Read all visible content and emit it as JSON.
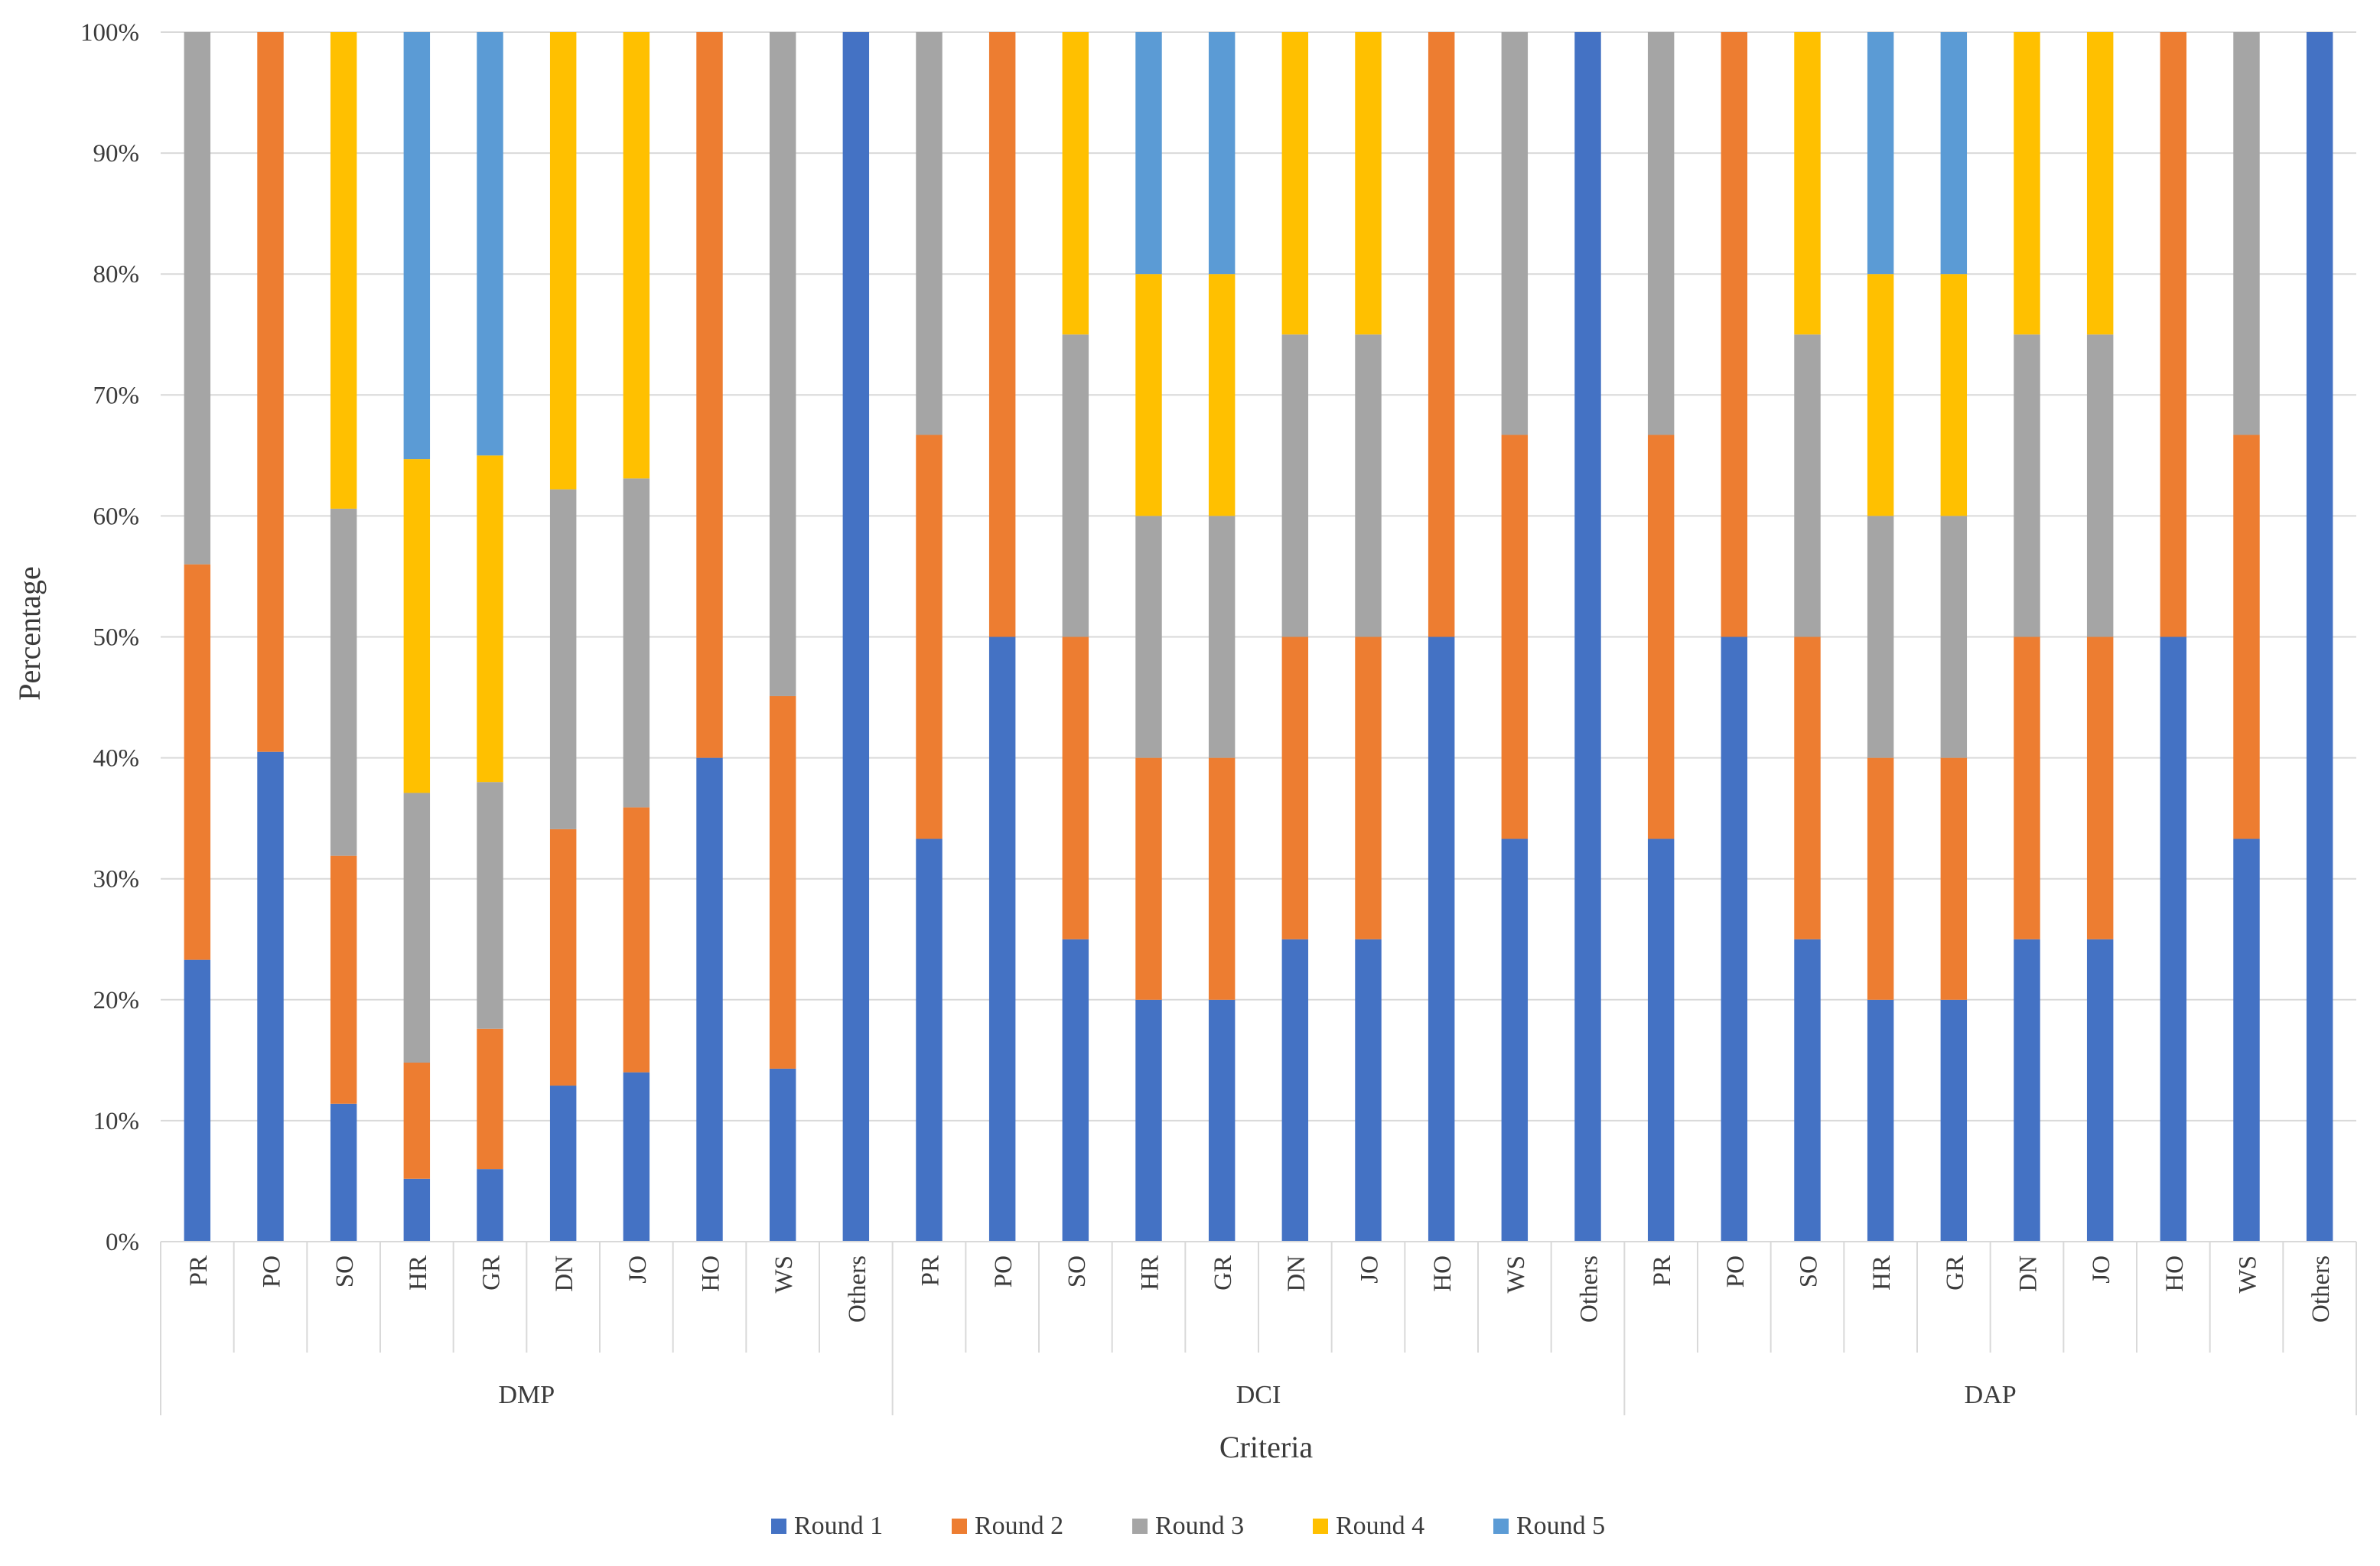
{
  "chart_data": {
    "type": "bar",
    "stacked": true,
    "percent": true,
    "xlabel": "Criteria",
    "ylabel": "Percentage",
    "ylim": [
      0,
      100
    ],
    "yticks": [
      "0%",
      "10%",
      "20%",
      "30%",
      "40%",
      "50%",
      "60%",
      "70%",
      "80%",
      "90%",
      "100%"
    ],
    "grid": true,
    "legend_position": "bottom",
    "groups": [
      {
        "name": "DMP",
        "categories": [
          "PR",
          "PO",
          "SO",
          "HR",
          "GR",
          "DN",
          "JO",
          "HO",
          "WS",
          "Others"
        ],
        "series": [
          {
            "name": "Round 1",
            "values": [
              23.3,
              40.5,
              11.4,
              5.2,
              6.0,
              12.9,
              14.0,
              40.0,
              14.3,
              100
            ]
          },
          {
            "name": "Round 2",
            "values": [
              32.7,
              59.5,
              20.5,
              9.6,
              11.6,
              21.2,
              21.9,
              60.0,
              30.8,
              0
            ]
          },
          {
            "name": "Round 3",
            "values": [
              44.0,
              0,
              28.7,
              22.3,
              20.4,
              28.1,
              27.2,
              0,
              54.9,
              0
            ]
          },
          {
            "name": "Round 4",
            "values": [
              0,
              0,
              39.4,
              27.6,
              27.0,
              37.8,
              36.9,
              0,
              0,
              0
            ]
          },
          {
            "name": "Round 5",
            "values": [
              0,
              0,
              0,
              35.3,
              35.0,
              0,
              0,
              0,
              0,
              0
            ]
          }
        ]
      },
      {
        "name": "DCI",
        "categories": [
          "PR",
          "PO",
          "SO",
          "HR",
          "GR",
          "DN",
          "JO",
          "HO",
          "WS",
          "Others"
        ],
        "series": [
          {
            "name": "Round 1",
            "values": [
              33.3,
              50,
              25,
              20,
              20,
              25,
              25,
              50,
              33.3,
              100
            ]
          },
          {
            "name": "Round 2",
            "values": [
              33.4,
              50,
              25,
              20,
              20,
              25,
              25,
              50,
              33.4,
              0
            ]
          },
          {
            "name": "Round 3",
            "values": [
              33.3,
              0,
              25,
              20,
              20,
              25,
              25,
              0,
              33.3,
              0
            ]
          },
          {
            "name": "Round 4",
            "values": [
              0,
              0,
              25,
              20,
              20,
              25,
              25,
              0,
              0,
              0
            ]
          },
          {
            "name": "Round 5",
            "values": [
              0,
              0,
              0,
              20,
              20,
              0,
              0,
              0,
              0,
              0
            ]
          }
        ]
      },
      {
        "name": "DAP",
        "categories": [
          "PR",
          "PO",
          "SO",
          "HR",
          "GR",
          "DN",
          "JO",
          "HO",
          "WS",
          "Others"
        ],
        "series": [
          {
            "name": "Round 1",
            "values": [
              33.3,
              50,
              25,
              20,
              20,
              25,
              25,
              50,
              33.3,
              100
            ]
          },
          {
            "name": "Round 2",
            "values": [
              33.4,
              50,
              25,
              20,
              20,
              25,
              25,
              50,
              33.4,
              0
            ]
          },
          {
            "name": "Round 3",
            "values": [
              33.3,
              0,
              25,
              20,
              20,
              25,
              25,
              0,
              33.3,
              0
            ]
          },
          {
            "name": "Round 4",
            "values": [
              0,
              0,
              25,
              20,
              20,
              25,
              25,
              0,
              0,
              0
            ]
          },
          {
            "name": "Round 5",
            "values": [
              0,
              0,
              0,
              20,
              20,
              0,
              0,
              0,
              0,
              0
            ]
          }
        ]
      }
    ],
    "colors": {
      "Round 1": "#4472C4",
      "Round 2": "#ED7D31",
      "Round 3": "#A5A5A5",
      "Round 4": "#FFC000",
      "Round 5": "#5B9BD5"
    }
  }
}
